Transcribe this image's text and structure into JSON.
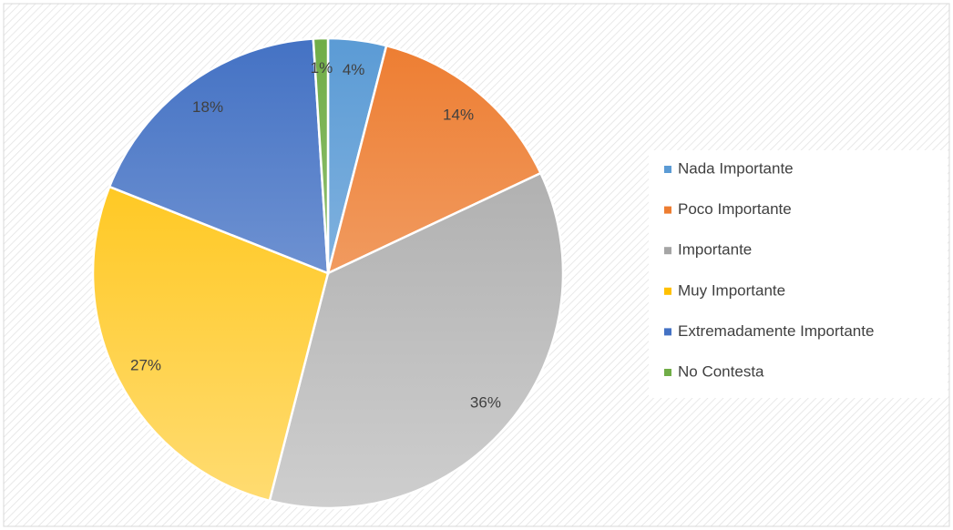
{
  "chart_data": {
    "type": "pie",
    "categories": [
      "Nada Importante",
      "Poco Importante",
      "Importante",
      "Muy Importante",
      "Extremadamente Importante",
      "No Contesta"
    ],
    "values": [
      4,
      14,
      36,
      27,
      18,
      1
    ],
    "value_labels": [
      "4%",
      "14%",
      "36%",
      "27%",
      "18%",
      "1%"
    ],
    "colors": [
      "#5b9bd5",
      "#ed7d31",
      "#a5a5a5",
      "#ffc000",
      "#4472c4",
      "#70ad47"
    ],
    "legend": "right"
  }
}
